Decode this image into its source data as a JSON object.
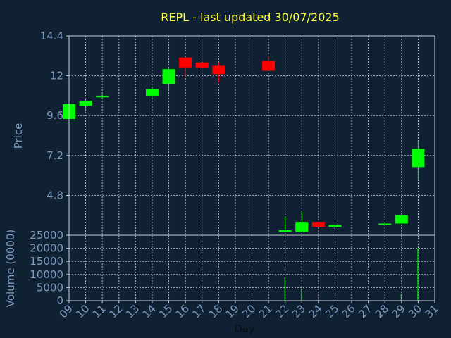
{
  "chart_data": {
    "type": "candlestick",
    "title": "REPL - last updated 30/07/2025",
    "xlabel": "Day",
    "ylabel": "Price",
    "volume_label": "Volume (0000)",
    "x_ticks": [
      "09",
      "10",
      "11",
      "12",
      "13",
      "14",
      "15",
      "16",
      "17",
      "18",
      "19",
      "20",
      "21",
      "22",
      "23",
      "24",
      "25",
      "26",
      "27",
      "28",
      "29",
      "30",
      "31"
    ],
    "price_ticks": [
      4.8,
      7.2,
      9.6,
      12,
      14.4
    ],
    "price_tick_labels": [
      "4.8",
      "7.2",
      "9.6",
      "12",
      "14.4"
    ],
    "price_ylim": [
      2.4,
      14.4
    ],
    "volume_ticks": [
      0,
      5000,
      10000,
      15000,
      20000,
      25000
    ],
    "volume_ylim": [
      0,
      25000
    ],
    "grid": true,
    "colors": {
      "up": "#00ff00",
      "down": "#ff0000",
      "background": "#0f2133",
      "text": "#7e9cc0",
      "title": "#ffff33"
    },
    "candles": [
      {
        "day": 9,
        "open": 9.4,
        "close": 10.3,
        "high": 10.4,
        "low": 9.4,
        "volume": 0
      },
      {
        "day": 10,
        "open": 10.2,
        "close": 10.5,
        "high": 10.6,
        "low": 10.0,
        "volume": 0
      },
      {
        "day": 11,
        "open": 10.7,
        "close": 10.8,
        "high": 10.9,
        "low": 10.6,
        "volume": 0
      },
      {
        "day": 14,
        "open": 10.8,
        "close": 11.2,
        "high": 11.3,
        "low": 10.7,
        "volume": 0
      },
      {
        "day": 15,
        "open": 11.5,
        "close": 12.4,
        "high": 12.5,
        "low": 11.2,
        "volume": 0
      },
      {
        "day": 16,
        "open": 13.1,
        "close": 12.5,
        "high": 13.1,
        "low": 11.9,
        "volume": 0
      },
      {
        "day": 17,
        "open": 12.8,
        "close": 12.5,
        "high": 12.8,
        "low": 12.5,
        "volume": 0
      },
      {
        "day": 18,
        "open": 12.6,
        "close": 12.1,
        "high": 12.8,
        "low": 11.6,
        "volume": 0
      },
      {
        "day": 21,
        "open": 12.9,
        "close": 12.3,
        "high": 13.2,
        "low": 12.3,
        "volume": 200
      },
      {
        "day": 22,
        "open": 2.6,
        "close": 2.7,
        "high": 3.5,
        "low": 2.6,
        "volume": 9000
      },
      {
        "day": 23,
        "open": 2.6,
        "close": 3.2,
        "high": 3.8,
        "low": 2.6,
        "volume": 4500
      },
      {
        "day": 24,
        "open": 3.2,
        "close": 2.9,
        "high": 3.2,
        "low": 2.9,
        "volume": 1800
      },
      {
        "day": 25,
        "open": 2.9,
        "close": 3.0,
        "high": 3.1,
        "low": 2.8,
        "volume": 300
      },
      {
        "day": 28,
        "open": 3.0,
        "close": 3.1,
        "high": 3.2,
        "low": 3.0,
        "volume": 200
      },
      {
        "day": 29,
        "open": 3.1,
        "close": 3.6,
        "high": 3.6,
        "low": 3.1,
        "volume": 2500
      },
      {
        "day": 30,
        "open": 6.5,
        "close": 7.6,
        "high": 8.1,
        "low": 5.7,
        "volume": 20000
      }
    ]
  }
}
